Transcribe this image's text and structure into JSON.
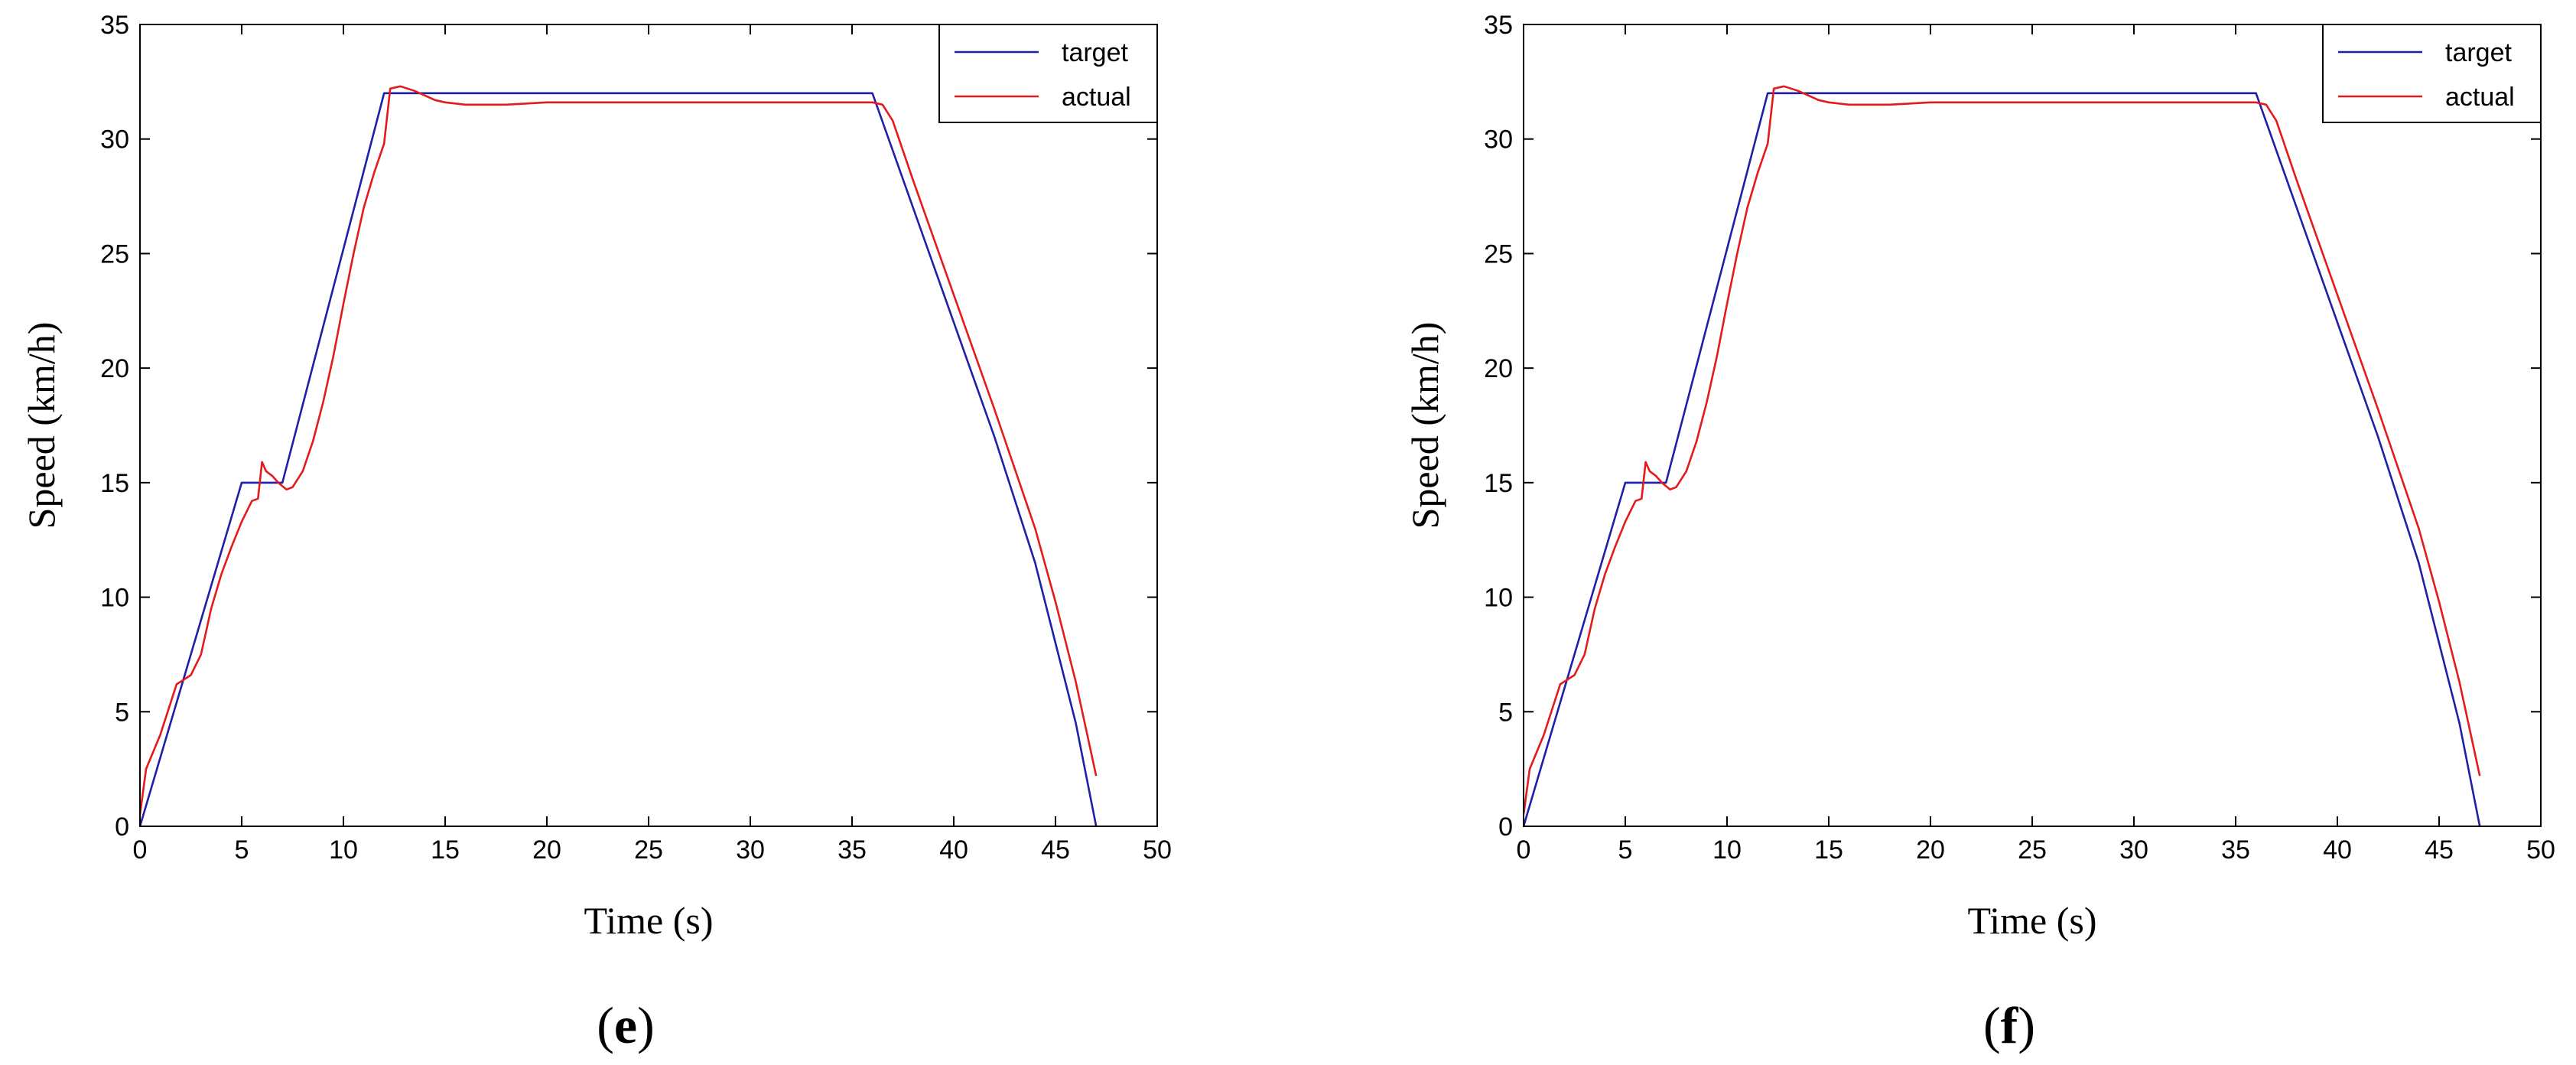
{
  "chart_data": [
    {
      "type": "line",
      "panel_label": "e",
      "xlabel": "Time (s)",
      "ylabel": "Speed (km/h)",
      "xlim": [
        0,
        50
      ],
      "ylim": [
        0,
        35
      ],
      "xticks": [
        "0",
        "5",
        "10",
        "15",
        "20",
        "25",
        "30",
        "35",
        "40",
        "45",
        "50"
      ],
      "yticks": [
        "0",
        "5",
        "10",
        "15",
        "20",
        "25",
        "30",
        "35"
      ],
      "grid": false,
      "legend_position": "top-right",
      "series": [
        {
          "name": "target",
          "color": "#1f1fa8",
          "x": [
            0,
            5,
            7,
            12,
            36,
            38,
            40,
            42,
            44,
            45,
            46,
            47
          ],
          "y": [
            0,
            15,
            15,
            32,
            32,
            27,
            22,
            17,
            11.5,
            8,
            4.5,
            0
          ]
        },
        {
          "name": "actual",
          "color": "#e41a1c",
          "x": [
            0,
            0.3,
            1,
            1.8,
            2.5,
            3,
            3.5,
            4,
            4.5,
            5,
            5.5,
            5.8,
            6.0,
            6.2,
            6.5,
            6.8,
            7.2,
            7.5,
            8,
            8.5,
            9,
            9.5,
            10,
            10.5,
            11,
            11.5,
            12,
            12.3,
            12.8,
            13.5,
            14,
            14.5,
            15,
            16,
            18,
            20,
            25,
            30,
            35,
            36,
            36.5,
            37,
            38,
            40,
            42,
            44,
            45,
            46,
            47
          ],
          "y": [
            0.5,
            2.5,
            4,
            6.2,
            6.6,
            7.5,
            9.5,
            11,
            12.2,
            13.3,
            14.2,
            14.3,
            15.9,
            15.5,
            15.3,
            15.0,
            14.7,
            14.8,
            15.5,
            16.8,
            18.5,
            20.5,
            22.8,
            25,
            27,
            28.5,
            29.8,
            32.2,
            32.3,
            32.1,
            31.9,
            31.7,
            31.6,
            31.5,
            31.5,
            31.6,
            31.6,
            31.6,
            31.6,
            31.6,
            31.5,
            30.8,
            28.2,
            23.2,
            18.2,
            13.0,
            9.8,
            6.3,
            2.2
          ]
        }
      ]
    },
    {
      "type": "line",
      "panel_label": "f",
      "xlabel": "Time (s)",
      "ylabel": "Speed (km/h)",
      "xlim": [
        0,
        50
      ],
      "ylim": [
        0,
        35
      ],
      "xticks": [
        "0",
        "5",
        "10",
        "15",
        "20",
        "25",
        "30",
        "35",
        "40",
        "45",
        "50"
      ],
      "yticks": [
        "0",
        "5",
        "10",
        "15",
        "20",
        "25",
        "30",
        "35"
      ],
      "grid": false,
      "legend_position": "top-right",
      "series": [
        {
          "name": "target",
          "color": "#1f1fa8",
          "x": [
            0,
            5,
            7,
            12,
            36,
            38,
            40,
            42,
            44,
            45,
            46,
            47
          ],
          "y": [
            0,
            15,
            15,
            32,
            32,
            27,
            22,
            17,
            11.5,
            8,
            4.5,
            0
          ]
        },
        {
          "name": "actual",
          "color": "#e41a1c",
          "x": [
            0,
            0.3,
            1,
            1.8,
            2.5,
            3,
            3.5,
            4,
            4.5,
            5,
            5.5,
            5.8,
            6.0,
            6.2,
            6.5,
            6.8,
            7.2,
            7.5,
            8,
            8.5,
            9,
            9.5,
            10,
            10.5,
            11,
            11.5,
            12,
            12.3,
            12.8,
            13.5,
            14,
            14.5,
            15,
            16,
            18,
            20,
            25,
            30,
            35,
            36,
            36.5,
            37,
            38,
            40,
            42,
            44,
            45,
            46,
            47
          ],
          "y": [
            0.5,
            2.5,
            4,
            6.2,
            6.6,
            7.5,
            9.5,
            11,
            12.2,
            13.3,
            14.2,
            14.3,
            15.9,
            15.5,
            15.3,
            15.0,
            14.7,
            14.8,
            15.5,
            16.8,
            18.5,
            20.5,
            22.8,
            25,
            27,
            28.5,
            29.8,
            32.2,
            32.3,
            32.1,
            31.9,
            31.7,
            31.6,
            31.5,
            31.5,
            31.6,
            31.6,
            31.6,
            31.6,
            31.6,
            31.5,
            30.8,
            28.2,
            23.2,
            18.2,
            13.0,
            9.8,
            6.3,
            2.2
          ]
        }
      ]
    }
  ]
}
